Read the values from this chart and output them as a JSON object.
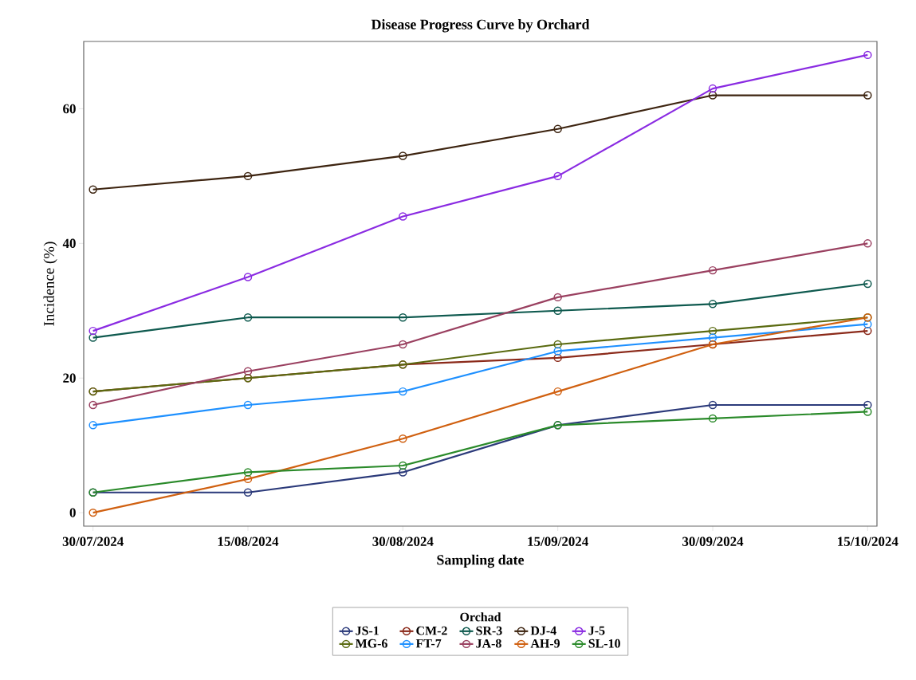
{
  "chart_data": {
    "type": "line",
    "title": "Disease Progress Curve by Orchard",
    "xlabel": "Sampling date",
    "ylabel": "Incidence (%)",
    "legend_title": "Orchad",
    "categories": [
      "30/07/2024",
      "15/08/2024",
      "30/08/2024",
      "15/09/2024",
      "30/09/2024",
      "15/10/2024"
    ],
    "ylim": [
      -2,
      70
    ],
    "yticks": [
      0,
      20,
      40,
      60
    ],
    "grid": false,
    "legend": "bottom",
    "marker": "circle",
    "line_style": "solid",
    "series": [
      {
        "name": "JS-1",
        "color": "#2b3a7a",
        "values": [
          3,
          3,
          6,
          13,
          16,
          16
        ]
      },
      {
        "name": "CM-2",
        "color": "#8b2a1a",
        "values": [
          18,
          20,
          22,
          23,
          25,
          27
        ]
      },
      {
        "name": "SR-3",
        "color": "#0f5a4f",
        "values": [
          26,
          29,
          29,
          30,
          31,
          34
        ]
      },
      {
        "name": "DJ-4",
        "color": "#3d2410",
        "values": [
          48,
          50,
          53,
          57,
          62,
          62
        ]
      },
      {
        "name": "J-5",
        "color": "#8a2be2",
        "values": [
          27,
          35,
          44,
          50,
          63,
          68
        ]
      },
      {
        "name": "MG-6",
        "color": "#5a6a10",
        "values": [
          18,
          20,
          22,
          25,
          27,
          29
        ]
      },
      {
        "name": "FT-7",
        "color": "#1e90ff",
        "values": [
          13,
          16,
          18,
          24,
          26,
          28
        ]
      },
      {
        "name": "JA-8",
        "color": "#9a4060",
        "values": [
          16,
          21,
          25,
          32,
          36,
          40
        ]
      },
      {
        "name": "AH-9",
        "color": "#d06010",
        "values": [
          0,
          5,
          11,
          18,
          25,
          29
        ]
      },
      {
        "name": "SL-10",
        "color": "#2a8a2a",
        "values": [
          3,
          6,
          7,
          13,
          14,
          15
        ]
      }
    ]
  }
}
